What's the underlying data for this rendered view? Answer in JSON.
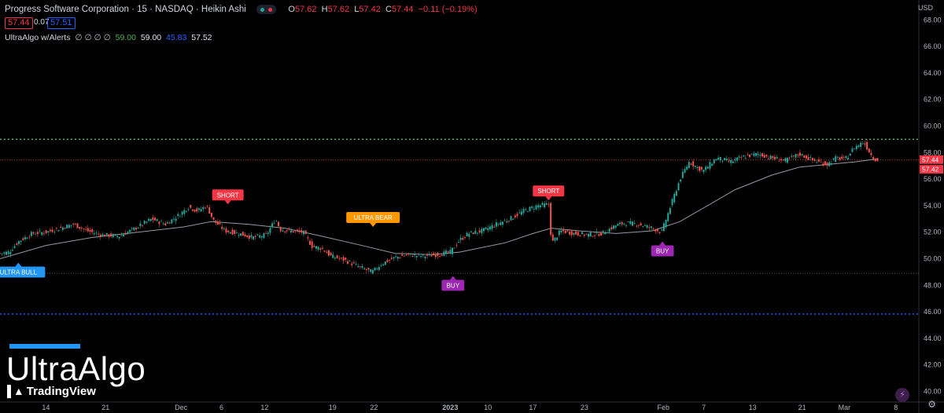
{
  "header": {
    "title": "Progress Software Corporation · 15 · NASDAQ · Heikin Ashi",
    "open_label": "O",
    "open": "57.62",
    "high_label": "H",
    "high": "57.62",
    "low_label": "L",
    "low": "57.42",
    "close_label": "C",
    "close": "57.44",
    "change": "−0.11 (−0.19%)",
    "sell_price": "57.44",
    "spread": "0.07",
    "buy_price": "57.51"
  },
  "indicator": {
    "name": "UltraAlgo w/Alerts",
    "placeholders": "∅ ∅ ∅ ∅",
    "v1": "59.00",
    "v2": "59.00",
    "v3": "45.83",
    "v4": "57.52"
  },
  "currency": "USD",
  "branding": {
    "name": "UltraAlgo",
    "platform": "TradingView"
  },
  "colors": {
    "bg": "#000000",
    "up": "#26a69a",
    "down": "#ef5350",
    "buy": "#9c27b0",
    "short": "#f23645",
    "ultra_bull": "#2196f3",
    "ultra_bear": "#ff9800",
    "target": "#2962ff"
  },
  "chart_data": {
    "type": "line",
    "subtype": "heikin-ashi candlestick",
    "title": "Progress Software Corporation · 15 · NASDAQ · Heikin Ashi",
    "y_ticks": [
      "40.00",
      "42.00",
      "44.00",
      "46.00",
      "48.00",
      "50.00",
      "52.00",
      "54.00",
      "56.00",
      "58.00",
      "60.00",
      "62.00",
      "64.00",
      "66.00",
      "68.00"
    ],
    "ylim": [
      39.2,
      69.5
    ],
    "x_ticks": [
      {
        "label": "14",
        "t": 0.05
      },
      {
        "label": "21",
        "t": 0.115
      },
      {
        "label": "Dec",
        "t": 0.197
      },
      {
        "label": "6",
        "t": 0.241
      },
      {
        "label": "12",
        "t": 0.288
      },
      {
        "label": "19",
        "t": 0.362
      },
      {
        "label": "22",
        "t": 0.407
      },
      {
        "label": "2023",
        "t": 0.49
      },
      {
        "label": "10",
        "t": 0.531
      },
      {
        "label": "17",
        "t": 0.58
      },
      {
        "label": "23",
        "t": 0.636
      },
      {
        "label": "Feb",
        "t": 0.722
      },
      {
        "label": "7",
        "t": 0.766
      },
      {
        "label": "13",
        "t": 0.819
      },
      {
        "label": "21",
        "t": 0.873
      },
      {
        "label": "Mar",
        "t": 0.919
      },
      {
        "label": "8",
        "t": 0.975
      }
    ],
    "price_path": [
      [
        0.0,
        50.4
      ],
      [
        0.01,
        50.5
      ],
      [
        0.02,
        51.3
      ],
      [
        0.035,
        51.9
      ],
      [
        0.05,
        52.0
      ],
      [
        0.065,
        52.3
      ],
      [
        0.08,
        52.6
      ],
      [
        0.095,
        52.1
      ],
      [
        0.11,
        51.8
      ],
      [
        0.13,
        51.7
      ],
      [
        0.15,
        52.4
      ],
      [
        0.165,
        53.0
      ],
      [
        0.18,
        52.6
      ],
      [
        0.195,
        53.3
      ],
      [
        0.205,
        53.9
      ],
      [
        0.215,
        53.6
      ],
      [
        0.225,
        54.0
      ],
      [
        0.232,
        52.9
      ],
      [
        0.245,
        52.1
      ],
      [
        0.26,
        51.9
      ],
      [
        0.275,
        51.6
      ],
      [
        0.29,
        51.8
      ],
      [
        0.3,
        53.0
      ],
      [
        0.305,
        52.2
      ],
      [
        0.315,
        52.1
      ],
      [
        0.33,
        52.0
      ],
      [
        0.34,
        50.9
      ],
      [
        0.35,
        50.8
      ],
      [
        0.36,
        50.2
      ],
      [
        0.375,
        49.9
      ],
      [
        0.39,
        49.4
      ],
      [
        0.405,
        49.0
      ],
      [
        0.415,
        49.6
      ],
      [
        0.43,
        50.1
      ],
      [
        0.445,
        50.3
      ],
      [
        0.46,
        50.2
      ],
      [
        0.475,
        50.3
      ],
      [
        0.49,
        50.5
      ],
      [
        0.5,
        51.4
      ],
      [
        0.51,
        51.9
      ],
      [
        0.525,
        52.1
      ],
      [
        0.54,
        52.6
      ],
      [
        0.555,
        53.0
      ],
      [
        0.57,
        53.6
      ],
      [
        0.585,
        54.0
      ],
      [
        0.598,
        54.1
      ],
      [
        0.6,
        51.1
      ],
      [
        0.61,
        52.1
      ],
      [
        0.625,
        51.9
      ],
      [
        0.64,
        51.8
      ],
      [
        0.655,
        51.9
      ],
      [
        0.67,
        52.5
      ],
      [
        0.68,
        52.7
      ],
      [
        0.695,
        52.6
      ],
      [
        0.71,
        52.3
      ],
      [
        0.72,
        52.0
      ],
      [
        0.73,
        54.0
      ],
      [
        0.74,
        56.0
      ],
      [
        0.75,
        57.3
      ],
      [
        0.765,
        56.6
      ],
      [
        0.78,
        57.6
      ],
      [
        0.795,
        57.3
      ],
      [
        0.81,
        57.7
      ],
      [
        0.825,
        57.9
      ],
      [
        0.84,
        57.6
      ],
      [
        0.855,
        57.4
      ],
      [
        0.87,
        57.9
      ],
      [
        0.885,
        57.4
      ],
      [
        0.9,
        57.1
      ],
      [
        0.91,
        57.6
      ],
      [
        0.92,
        57.5
      ],
      [
        0.93,
        58.4
      ],
      [
        0.94,
        58.8
      ],
      [
        0.95,
        57.6
      ],
      [
        0.955,
        57.44
      ]
    ],
    "moving_average": [
      [
        0.0,
        50.0
      ],
      [
        0.05,
        51.0
      ],
      [
        0.1,
        51.6
      ],
      [
        0.15,
        52.0
      ],
      [
        0.2,
        52.4
      ],
      [
        0.23,
        52.8
      ],
      [
        0.27,
        52.6
      ],
      [
        0.31,
        52.3
      ],
      [
        0.35,
        51.7
      ],
      [
        0.4,
        50.9
      ],
      [
        0.43,
        50.4
      ],
      [
        0.47,
        50.3
      ],
      [
        0.5,
        50.5
      ],
      [
        0.55,
        51.2
      ],
      [
        0.58,
        51.9
      ],
      [
        0.6,
        52.3
      ],
      [
        0.63,
        52.1
      ],
      [
        0.67,
        51.9
      ],
      [
        0.71,
        52.1
      ],
      [
        0.74,
        52.8
      ],
      [
        0.77,
        54.0
      ],
      [
        0.8,
        55.2
      ],
      [
        0.84,
        56.3
      ],
      [
        0.87,
        56.9
      ],
      [
        0.9,
        57.1
      ],
      [
        0.93,
        57.3
      ],
      [
        0.955,
        57.52
      ]
    ],
    "levels": [
      {
        "name": "upper",
        "value": 59.0,
        "color": "#66bb6a"
      },
      {
        "name": "lower",
        "value": 48.9,
        "color": "#787b86"
      },
      {
        "name": "target",
        "value": 45.83,
        "color": "#2962ff"
      }
    ],
    "current_prices": [
      "57.44",
      "57.42"
    ],
    "signals": [
      {
        "label": "ULTRA BULL",
        "t": 0.02,
        "price": 50.0,
        "kind": "bull"
      },
      {
        "label": "SHORT",
        "t": 0.248,
        "price": 53.8,
        "kind": "short"
      },
      {
        "label": "ULTRA BEAR",
        "t": 0.406,
        "price": 52.1,
        "kind": "bear"
      },
      {
        "label": "BUY",
        "t": 0.493,
        "price": 49.0,
        "kind": "buy"
      },
      {
        "label": "SHORT",
        "t": 0.597,
        "price": 54.1,
        "kind": "short"
      },
      {
        "label": "BUY",
        "t": 0.721,
        "price": 51.6,
        "kind": "buy"
      }
    ]
  }
}
